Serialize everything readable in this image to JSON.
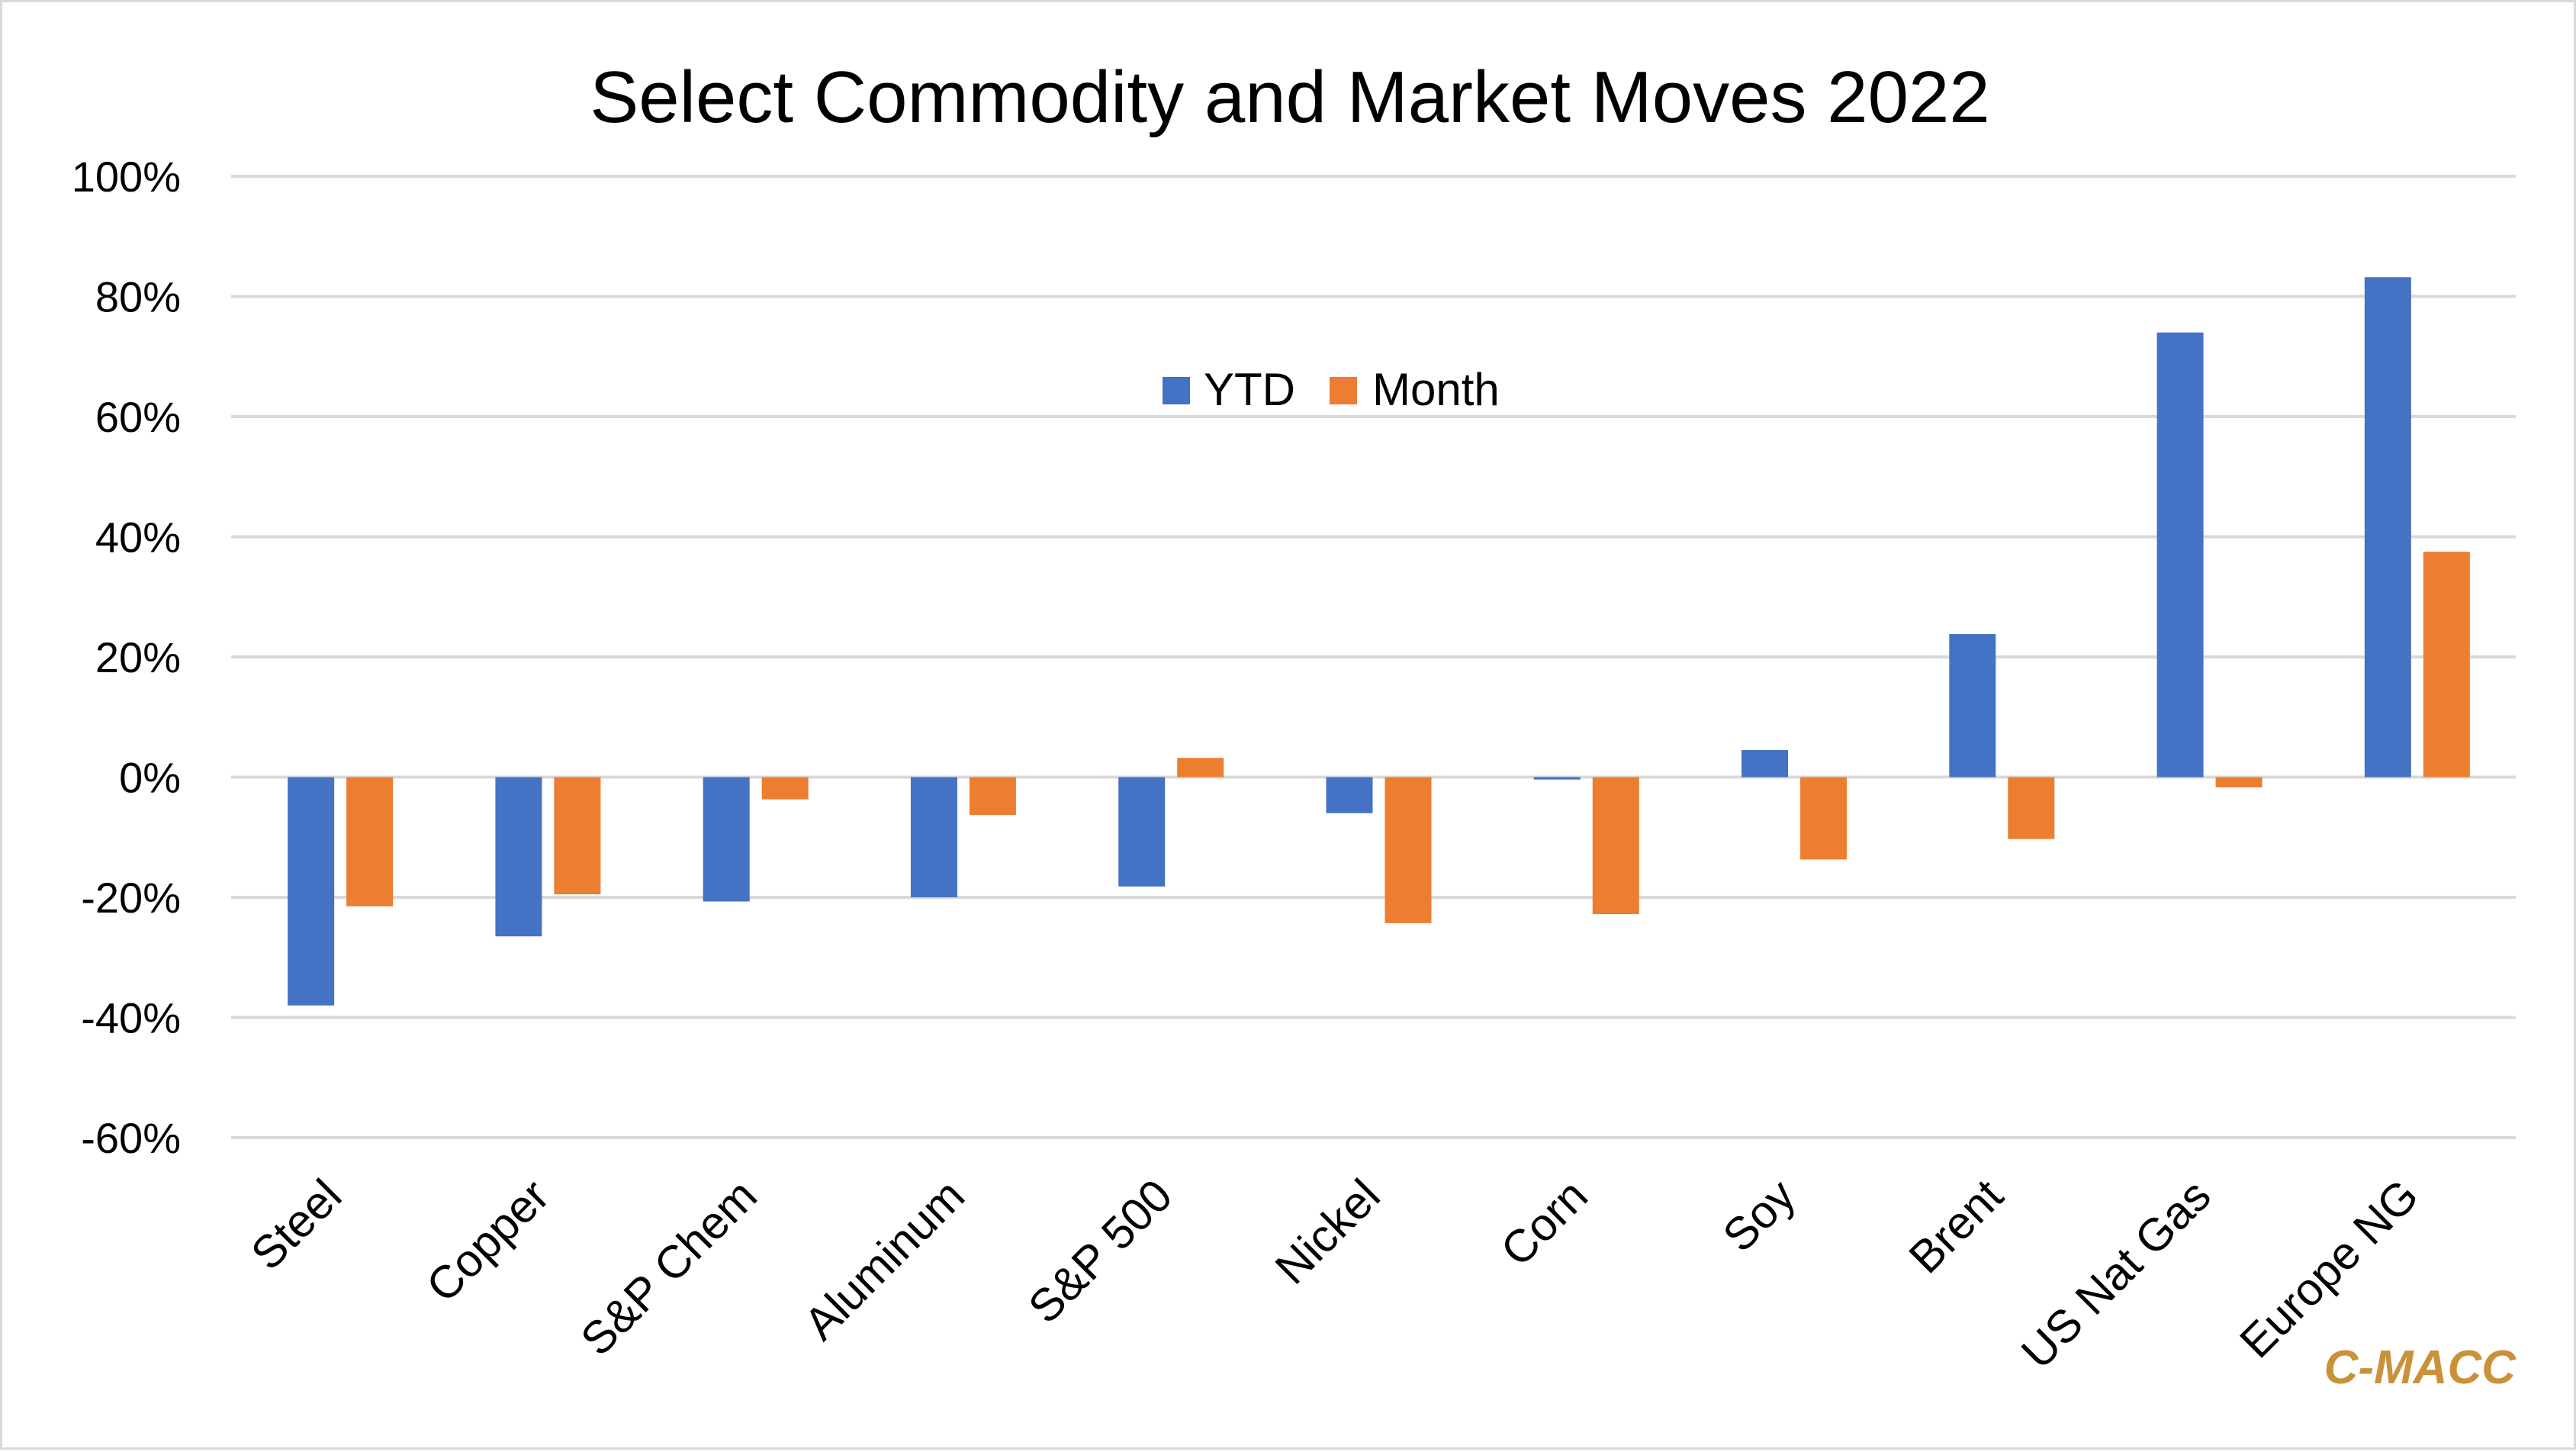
{
  "chart_data": {
    "type": "bar",
    "title": "Select Commodity and Market Moves 2022",
    "xlabel": "",
    "ylabel": "",
    "categories": [
      "Steel",
      "Copper",
      "S&P Chem",
      "Aluminum",
      "S&P 500",
      "Nickel",
      "Corn",
      "Soy",
      "Brent",
      "US Nat Gas",
      "Europe NG"
    ],
    "series": [
      {
        "name": "YTD",
        "color": "#4472c4",
        "values": [
          -38,
          -26.5,
          -20.7,
          -20,
          -18.2,
          -6,
          -0.4,
          4.5,
          23.8,
          74,
          83.2
        ]
      },
      {
        "name": "Month",
        "color": "#ed7d31",
        "values": [
          -21.5,
          -19.5,
          -3.7,
          -6.3,
          3.2,
          -24.3,
          -22.8,
          -13.7,
          -10.3,
          -1.7,
          37.5
        ]
      }
    ],
    "ylim": [
      -60,
      100
    ],
    "yticks": [
      100,
      80,
      60,
      40,
      20,
      0,
      -20,
      -40,
      -60
    ],
    "ytick_labels": [
      "100%",
      "80%",
      "60%",
      "40%",
      "20%",
      "0%",
      "-20%",
      "-40%",
      "-60%"
    ],
    "grid": true,
    "legend_position": "top-center"
  },
  "watermark": {
    "text": "C-MACC",
    "color": "#c9923a"
  }
}
